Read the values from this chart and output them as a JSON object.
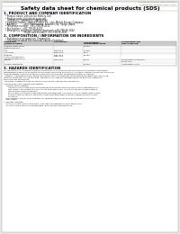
{
  "background_color": "#e8e8e4",
  "page_bg": "#ffffff",
  "header_left": "Product Name: Lithium Ion Battery Cell",
  "header_right_line1": "Substance Number: SDS-LIB-00010",
  "header_right_line2": "Established / Revision: Dec.1.2010",
  "title": "Safety data sheet for chemical products (SDS)",
  "section1_title": "1. PRODUCT AND COMPANY IDENTIFICATION",
  "section1_lines": [
    "  • Product name: Lithium Ion Battery Cell",
    "  • Product code: Cylindrical-type cell",
    "      (M18650U, UM18650U, UM18650A)",
    "  • Company name:    Sanyo Electric Co., Ltd., Mobile Energy Company",
    "  • Address:          2001 Kamitosawa, Sumoto-City, Hyogo, Japan",
    "  • Telephone number:  +81-799-26-4111",
    "  • Fax number:  +81-799-26-4120",
    "  • Emergency telephone number (daytime): +81-799-26-3042",
    "                              (Night and holiday): +81-799-26-4101"
  ],
  "section2_title": "2. COMPOSITION / INFORMATION ON INGREDIENTS",
  "section2_sub": "  • Substance or preparation: Preparation",
  "section2_sub2": "  • Information about the chemical nature of product:",
  "table_col_headers": [
    "Component(Common name)",
    "CAS number",
    "Concentration /\nConcentration range",
    "Classification and\nhazard labeling"
  ],
  "table_col2_sub": "Common name",
  "table_rows": [
    [
      "Lithium cobalt oxide\n(LiMnxCoyNizO2)",
      "-",
      "30-60%",
      "-"
    ],
    [
      "Iron",
      "7439-89-6",
      "10-25%",
      "-"
    ],
    [
      "Aluminum",
      "7429-90-5",
      "2-5%",
      "-"
    ],
    [
      "Graphite\n(listed as graphite-1)\n(At-No as graphite-1)",
      "7782-42-5\n7782-44-2",
      "10-20%",
      "-"
    ],
    [
      "Copper",
      "7440-50-8",
      "5-15%",
      "Sensitization of the skin\ngroup No.2"
    ],
    [
      "Organic electrolyte",
      "-",
      "10-20%",
      "Inflammable liquid"
    ]
  ],
  "section3_title": "3. HAZARDS IDENTIFICATION",
  "section3_lines": [
    "For the battery cell, chemical materials are stored in a hermetically sealed metal case, designed to withstand",
    "temperatures generated by electro-chemical reaction during normal use. As a result, during normal use, there is no",
    "physical danger of ignition or explosion and there is no danger of hazardous materials leakage.",
    "  However, if exposed to a fire, added mechanical shock, decomposes, when electrolyte safety may issues use,",
    "the gas release vent can be operated. The battery cell case will be breached of fire particles, hazardous",
    "materials may be released.",
    "  Moreover, if heated strongly by the surrounding fire, soot gas may be emitted."
  ],
  "most_important": "• Most important hazard and effects:",
  "human_health_label": "    Human health effects:",
  "health_lines": [
    "        Inhalation: The release of the electrolyte has an anesthetic action and stimulates a respiratory tract.",
    "        Skin contact: The release of the electrolyte stimulates a skin. The electrolyte skin contact causes a",
    "        sore and stimulation on the skin.",
    "        Eye contact: The release of the electrolyte stimulates eyes. The electrolyte eye contact causes a sore",
    "        and stimulation on the eye. Especially, a substance that causes a strong inflammation of the eye is",
    "        contained.",
    "    Environmental effects: Since a battery cell remains in the environment, do not throw out it into the",
    "    environment."
  ],
  "specific": "• Specific hazards:",
  "specific_lines": [
    "    If the electrolyte contacts with water, it will generate detrimental hydrogen fluoride.",
    "    Since the used electrolyte is inflammable liquid, do not bring close to fire."
  ]
}
